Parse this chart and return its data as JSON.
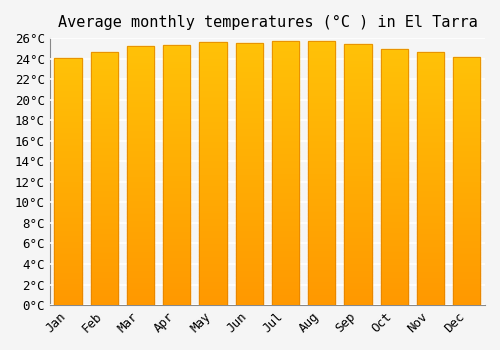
{
  "title": "Average monthly temperatures (°C ) in El Tarra",
  "months": [
    "Jan",
    "Feb",
    "Mar",
    "Apr",
    "May",
    "Jun",
    "Jul",
    "Aug",
    "Sep",
    "Oct",
    "Nov",
    "Dec"
  ],
  "values": [
    24.1,
    24.6,
    25.2,
    25.3,
    25.6,
    25.5,
    25.7,
    25.7,
    25.4,
    24.9,
    24.6,
    24.2
  ],
  "bar_color_top": "#FFC107",
  "bar_color_bottom": "#FF9800",
  "bar_edge_color": "#E08000",
  "ylim": [
    0,
    26
  ],
  "ytick_step": 2,
  "background_color": "#F5F5F5",
  "grid_color": "#FFFFFF",
  "title_fontsize": 11,
  "tick_fontsize": 9,
  "bar_width": 0.75,
  "font_family": "monospace"
}
